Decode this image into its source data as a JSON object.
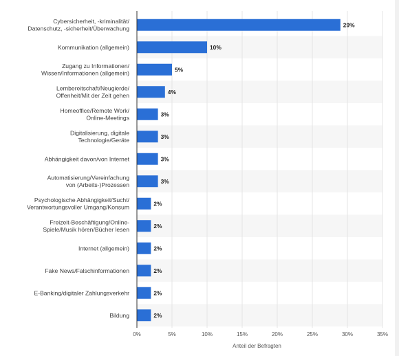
{
  "chart_data": {
    "type": "bar",
    "orientation": "horizontal",
    "categories": [
      [
        "Cybersicherheit, -kriminalität/",
        "Datenschutz, -sicherheit/Überwachung"
      ],
      [
        "Kommunikation (allgemein)"
      ],
      [
        "Zugang zu Informationen/",
        "Wissen/Informationen (allgemein)"
      ],
      [
        "Lernbereitschaft/Neugierde/",
        "Offenheit/Mit der Zeit gehen"
      ],
      [
        "Homeoffice/Remote Work/",
        "Online-Meetings"
      ],
      [
        "Digitalisierung, digitale",
        "Technologie/Geräte"
      ],
      [
        "Abhängigkeit davon/von Internet"
      ],
      [
        "Automatisierung/Vereinfachung",
        "von (Arbeits-)Prozessen"
      ],
      [
        "Psychologische Abhängigkeit/Sucht/",
        "Verantwortungsvoller Umgang/Konsum"
      ],
      [
        "Freizeit-Beschäftigung/Online-",
        "Spiele/Musik hören/Bücher lesen"
      ],
      [
        "Internet (allgemein)"
      ],
      [
        "Fake News/Falschinformationen"
      ],
      [
        "E-Banking/digitaler Zahlungsverkehr"
      ],
      [
        "Bildung"
      ]
    ],
    "values": [
      29,
      10,
      5,
      4,
      3,
      3,
      3,
      3,
      2,
      2,
      2,
      2,
      2,
      2
    ],
    "value_labels": [
      "29%",
      "10%",
      "5%",
      "4%",
      "3%",
      "3%",
      "3%",
      "3%",
      "2%",
      "2%",
      "2%",
      "2%",
      "2%",
      "2%"
    ],
    "xlim": [
      0,
      35
    ],
    "x_ticks": [
      0,
      5,
      10,
      15,
      20,
      25,
      30,
      35
    ],
    "x_tick_labels": [
      "0%",
      "5%",
      "10%",
      "15%",
      "20%",
      "25%",
      "30%",
      "35%"
    ],
    "xlabel": "Anteil der Befragten",
    "ylabel": "",
    "title": "",
    "grid": true,
    "bar_color": "#2a6fd6",
    "alt_row_color": "#f6f6f6",
    "grid_color": "#e4e4e4"
  }
}
